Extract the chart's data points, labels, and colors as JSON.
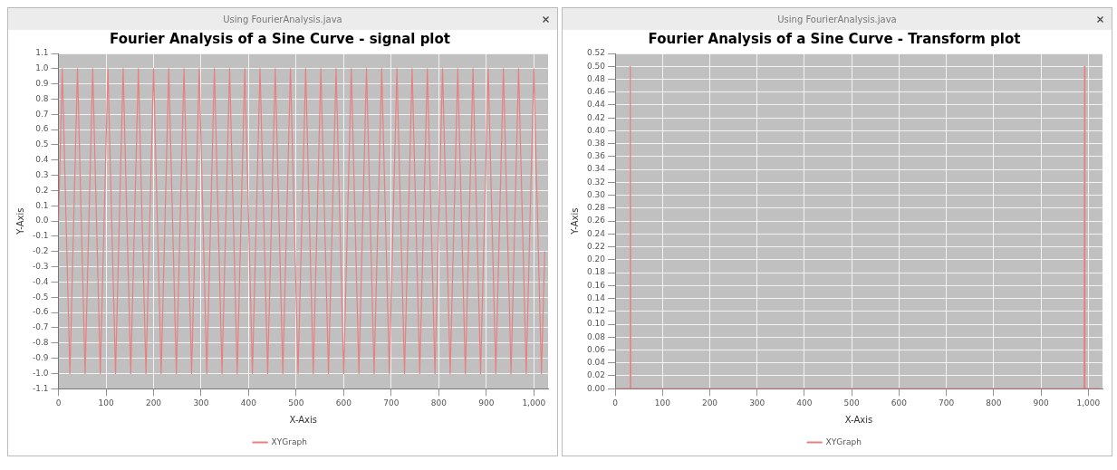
{
  "chart_data": [
    {
      "type": "line",
      "title": "Fourier Analysis of a Sine Curve - signal plot",
      "xlabel": "X-Axis",
      "ylabel": "Y-Axis",
      "annotations": [
        "Using FourierAnalysis.java"
      ],
      "series": [
        {
          "name": "XYGraph",
          "color": "#e88080",
          "x": [
            0,
            8,
            24,
            40,
            56,
            72,
            88,
            104,
            120,
            136,
            152,
            168,
            184,
            200,
            216,
            232,
            248,
            264,
            280,
            296,
            312,
            328,
            344,
            360,
            376,
            392,
            408,
            424,
            440,
            456,
            472,
            488,
            504,
            520,
            536,
            552,
            568,
            584,
            600,
            616,
            632,
            648,
            664,
            680,
            696,
            712,
            728,
            744,
            760,
            776,
            792,
            808,
            824,
            840,
            856,
            872,
            888,
            904,
            920,
            936,
            952,
            968,
            984,
            1000,
            1016,
            1023
          ],
          "values": [
            0,
            1,
            -1,
            1,
            -1,
            1,
            -1,
            1,
            -1,
            1,
            -1,
            1,
            -1,
            1,
            -1,
            1,
            -1,
            1,
            -1,
            1,
            -1,
            1,
            -1,
            1,
            -1,
            1,
            -1,
            1,
            -1,
            1,
            -1,
            1,
            -1,
            1,
            -1,
            1,
            -1,
            1,
            -1,
            1,
            -1,
            1,
            -1,
            1,
            -1,
            1,
            -1,
            1,
            -1,
            1,
            -1,
            1,
            -1,
            1,
            -1,
            1,
            -1,
            1,
            -1,
            1,
            -1,
            1,
            -1,
            1,
            -1,
            -0.2
          ]
        }
      ],
      "xlim": [
        0,
        1030
      ],
      "xticks": [
        0,
        100,
        200,
        300,
        400,
        500,
        600,
        700,
        800,
        900,
        {
          "value": 1000,
          "label": "1,000"
        }
      ],
      "ylim": [
        -1.1,
        1.1
      ],
      "yticks": [
        {
          "value": -1.1,
          "label": "-1.1"
        },
        {
          "value": -1,
          "label": "-1.0"
        },
        {
          "value": -0.9,
          "label": "-0.9"
        },
        {
          "value": -0.8,
          "label": "-0.8"
        },
        {
          "value": -0.7,
          "label": "-0.7"
        },
        {
          "value": -0.6,
          "label": "-0.6"
        },
        {
          "value": -0.5,
          "label": "-0.5"
        },
        {
          "value": -0.4,
          "label": "-0.4"
        },
        {
          "value": -0.3,
          "label": "-0.3"
        },
        {
          "value": -0.2,
          "label": "-0.2"
        },
        {
          "value": -0.1,
          "label": "-0.1"
        },
        {
          "value": 0,
          "label": "0.0"
        },
        {
          "value": 0.1,
          "label": "0.1"
        },
        {
          "value": 0.2,
          "label": "0.2"
        },
        {
          "value": 0.3,
          "label": "0.3"
        },
        {
          "value": 0.4,
          "label": "0.4"
        },
        {
          "value": 0.5,
          "label": "0.5"
        },
        {
          "value": 0.6,
          "label": "0.6"
        },
        {
          "value": 0.7,
          "label": "0.7"
        },
        {
          "value": 0.8,
          "label": "0.8"
        },
        {
          "value": 0.9,
          "label": "0.9"
        },
        {
          "value": 1,
          "label": "1.0"
        },
        {
          "value": 1.1,
          "label": "1.1"
        }
      ],
      "grid": true,
      "legend": "bottom",
      "marker": "none",
      "line_style": "solid"
    },
    {
      "type": "line",
      "title": "Fourier Analysis of a Sine Curve - Transform plot",
      "xlabel": "X-Axis",
      "ylabel": "Y-Axis",
      "annotations": [
        "Using FourierAnalysis.java"
      ],
      "series": [
        {
          "name": "XYGraph",
          "color": "#e88080",
          "x": [
            0,
            31,
            32,
            33,
            991,
            992,
            993,
            1023
          ],
          "values": [
            0,
            0,
            0.5,
            0,
            0,
            0.5,
            0,
            0
          ]
        }
      ],
      "xlim": [
        0,
        1030
      ],
      "xticks": [
        0,
        100,
        200,
        300,
        400,
        500,
        600,
        700,
        800,
        900,
        {
          "value": 1000,
          "label": "1,000"
        }
      ],
      "ylim": [
        0,
        0.52
      ],
      "yticks": [
        {
          "value": 0,
          "label": "0.00"
        },
        {
          "value": 0.02,
          "label": "0.02"
        },
        {
          "value": 0.04,
          "label": "0.04"
        },
        {
          "value": 0.06,
          "label": "0.06"
        },
        {
          "value": 0.08,
          "label": "0.08"
        },
        {
          "value": 0.1,
          "label": "0.10"
        },
        {
          "value": 0.12,
          "label": "0.12"
        },
        {
          "value": 0.14,
          "label": "0.14"
        },
        {
          "value": 0.16,
          "label": "0.16"
        },
        {
          "value": 0.18,
          "label": "0.18"
        },
        {
          "value": 0.2,
          "label": "0.20"
        },
        {
          "value": 0.22,
          "label": "0.22"
        },
        {
          "value": 0.24,
          "label": "0.24"
        },
        {
          "value": 0.26,
          "label": "0.26"
        },
        {
          "value": 0.28,
          "label": "0.28"
        },
        {
          "value": 0.3,
          "label": "0.30"
        },
        {
          "value": 0.32,
          "label": "0.32"
        },
        {
          "value": 0.34,
          "label": "0.34"
        },
        {
          "value": 0.36,
          "label": "0.36"
        },
        {
          "value": 0.38,
          "label": "0.38"
        },
        {
          "value": 0.4,
          "label": "0.40"
        },
        {
          "value": 0.42,
          "label": "0.42"
        },
        {
          "value": 0.44,
          "label": "0.44"
        },
        {
          "value": 0.46,
          "label": "0.46"
        },
        {
          "value": 0.48,
          "label": "0.48"
        },
        {
          "value": 0.5,
          "label": "0.50"
        },
        {
          "value": 0.52,
          "label": "0.52"
        }
      ],
      "grid": true,
      "legend": "bottom",
      "marker": "none",
      "line_style": "solid"
    }
  ]
}
